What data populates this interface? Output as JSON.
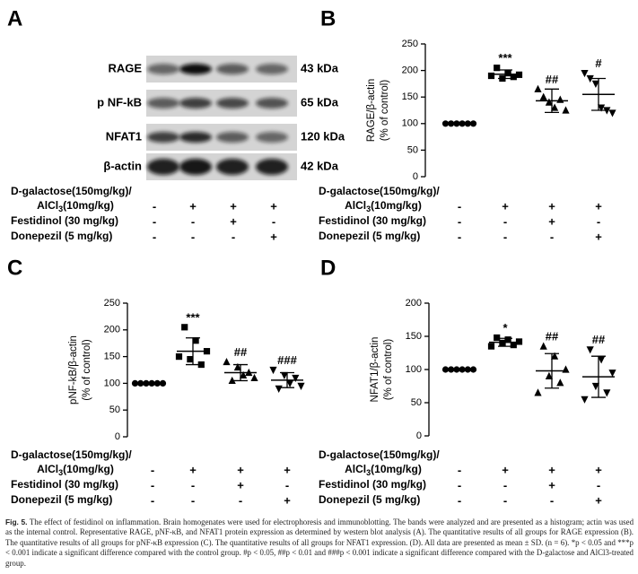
{
  "panels": [
    "A",
    "B",
    "C",
    "D"
  ],
  "blot": {
    "proteins": [
      "RAGE",
      "p NF-kB",
      "NFAT1",
      "β-actin"
    ],
    "sizes": [
      "43 kDa",
      "65 kDa",
      "120 kDa",
      "42 kDa"
    ]
  },
  "treatments": {
    "dgal": [
      "D-galactose(150mg/kg)/",
      "AlCl",
      "3",
      "(10mg/kg)"
    ],
    "festidinol": "Festidinol (30 mg/kg)",
    "donepezil": "Donepezil (5 mg/kg)",
    "signs": [
      [
        "-",
        "+",
        "+",
        "+"
      ],
      [
        "-",
        "-",
        "+",
        "-"
      ],
      [
        "-",
        "-",
        "-",
        "+"
      ]
    ]
  },
  "chart_data": [
    {
      "type": "dot",
      "ylabel": [
        "RAGE/β-actin",
        "(% of control)"
      ],
      "ylim": [
        0,
        250
      ],
      "yticks": [
        0,
        50,
        100,
        150,
        200,
        250
      ],
      "categories": [
        null,
        null,
        null,
        null
      ],
      "markers": [
        "circle",
        "square",
        "triangle",
        "triangle-down"
      ],
      "color": "#000000",
      "points": [
        [
          100,
          100,
          100,
          100,
          100,
          100
        ],
        [
          190,
          205,
          185,
          195,
          188,
          192
        ],
        [
          165,
          150,
          140,
          130,
          145,
          125
        ],
        [
          195,
          185,
          175,
          130,
          125,
          120
        ]
      ],
      "means": [
        100,
        193,
        143,
        155
      ],
      "sd": [
        0,
        8,
        22,
        30
      ],
      "annotations": [
        null,
        "***",
        "##",
        "#"
      ]
    },
    {
      "type": "dot",
      "ylabel": [
        "pNF-kB/β-actin",
        "(% of control)"
      ],
      "ylim": [
        0,
        250
      ],
      "yticks": [
        0,
        50,
        100,
        150,
        200,
        250
      ],
      "categories": [
        null,
        null,
        null,
        null
      ],
      "markers": [
        "circle",
        "square",
        "triangle",
        "triangle-down"
      ],
      "color": "#000000",
      "points": [
        [
          100,
          100,
          100,
          100,
          100,
          100
        ],
        [
          150,
          205,
          145,
          180,
          135,
          160
        ],
        [
          140,
          105,
          130,
          115,
          120,
          110
        ],
        [
          125,
          90,
          115,
          100,
          110,
          95
        ]
      ],
      "means": [
        100,
        160,
        120,
        106
      ],
      "sd": [
        0,
        25,
        15,
        14
      ],
      "annotations": [
        null,
        "***",
        "##",
        "###"
      ]
    },
    {
      "type": "dot",
      "ylabel": [
        "NFAT1/β-actin",
        "(% of control)"
      ],
      "ylim": [
        0,
        200
      ],
      "yticks": [
        0,
        50,
        100,
        150,
        200
      ],
      "categories": [
        null,
        null,
        null,
        null
      ],
      "markers": [
        "circle",
        "square",
        "triangle",
        "triangle-down"
      ],
      "color": "#000000",
      "points": [
        [
          100,
          100,
          100,
          100,
          100,
          100
        ],
        [
          135,
          148,
          140,
          145,
          137,
          142
        ],
        [
          65,
          135,
          90,
          120,
          80,
          100
        ],
        [
          55,
          130,
          75,
          115,
          65,
          95
        ]
      ],
      "means": [
        100,
        141,
        98,
        89
      ],
      "sd": [
        0,
        6,
        26,
        31
      ],
      "annotations": [
        null,
        "*",
        "##",
        "##"
      ]
    }
  ],
  "caption": {
    "label": "Fig. 5.",
    "text": "The effect of festidinol on inflammation. Brain homogenates were used for electrophoresis and immunoblotting. The bands were analyzed and are presented as a histogram; actin was used as the internal control. Representative RAGE, pNF-κB, and NFAT1 protein expression as determined by western blot analysis (A). The quantitative results of all groups for RAGE expression (B). The quantitative results of all groups for pNF-κB expression (C). The quantitative results of all groups for NFAT1 expression. (D). All data are presented as mean ± SD. (n = 6). *p < 0.05 and ***p < 0.001 indicate a significant difference compared with the control group. #p < 0.05, ##p < 0.01 and ###p < 0.001 indicate a significant difference compared with the D-galactose and AlCl3-treated group."
  }
}
